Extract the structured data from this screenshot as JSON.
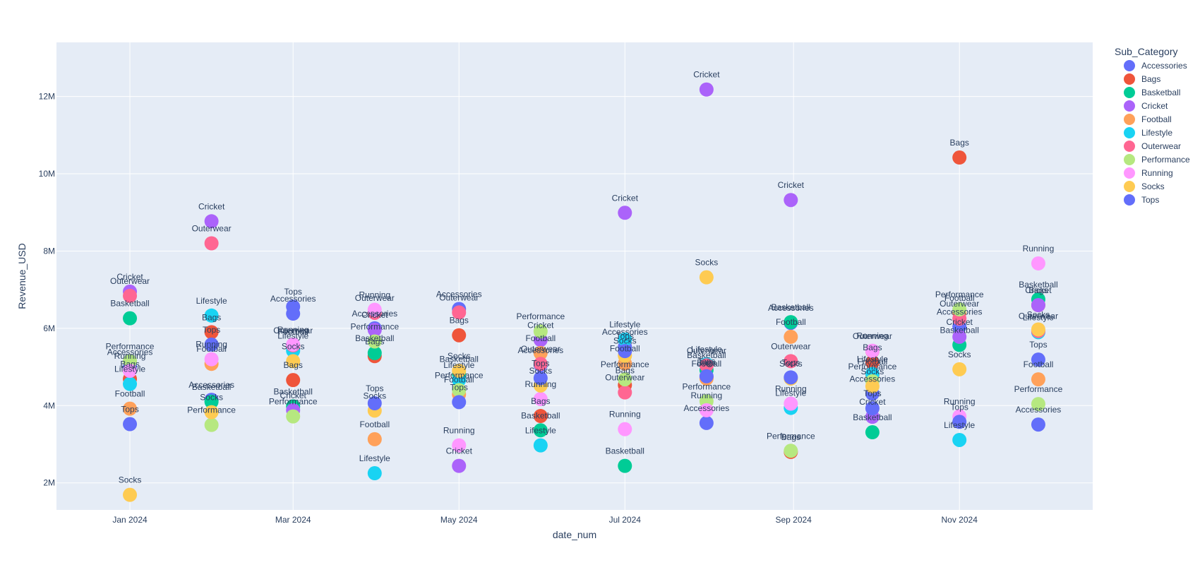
{
  "chart_data": {
    "type": "scatter",
    "title": "",
    "xlabel": "date_num",
    "ylabel": "Revenue_USD",
    "x_ticks": [
      "Jan 2024",
      "Mar 2024",
      "May 2024",
      "Jul 2024",
      "Sep 2024",
      "Nov 2024"
    ],
    "y_ticks": [
      "2M",
      "4M",
      "6M",
      "8M",
      "10M",
      "12M"
    ],
    "ylim": [
      1300000,
      13400000
    ],
    "xlim": [
      "2023-12-05",
      "2024-12-20"
    ],
    "grid": true,
    "legend_title": "Sub_Category",
    "legend_position": "right",
    "show_point_labels": true,
    "series": [
      {
        "name": "Accessories",
        "color": "#636efa",
        "points": [
          {
            "x": "2024-01-01",
            "y": 5000000
          },
          {
            "x": "2024-01-31",
            "y": 4150000
          },
          {
            "x": "2024-03-01",
            "y": 6380000
          },
          {
            "x": "2024-03-31",
            "y": 6000000
          },
          {
            "x": "2024-05-01",
            "y": 6500000
          },
          {
            "x": "2024-05-31",
            "y": 5050000
          },
          {
            "x": "2024-07-01",
            "y": 5520000
          },
          {
            "x": "2024-07-31",
            "y": 3550000
          },
          {
            "x": "2024-08-31",
            "y": 6140000
          },
          {
            "x": "2024-09-30",
            "y": 4310000
          },
          {
            "x": "2024-11-01",
            "y": 6040000
          },
          {
            "x": "2024-11-30",
            "y": 3510000
          }
        ]
      },
      {
        "name": "Bags",
        "color": "#ef553b",
        "points": [
          {
            "x": "2024-01-01",
            "y": 4690000
          },
          {
            "x": "2024-01-31",
            "y": 5900000
          },
          {
            "x": "2024-03-01",
            "y": 4660000
          },
          {
            "x": "2024-03-31",
            "y": 5280000
          },
          {
            "x": "2024-05-01",
            "y": 5820000
          },
          {
            "x": "2024-05-31",
            "y": 3730000
          },
          {
            "x": "2024-07-01",
            "y": 4530000
          },
          {
            "x": "2024-07-31",
            "y": 4730000
          },
          {
            "x": "2024-08-31",
            "y": 2800000
          },
          {
            "x": "2024-09-30",
            "y": 5120000
          },
          {
            "x": "2024-11-01",
            "y": 10420000
          },
          {
            "x": "2024-11-30",
            "y": 6600000
          }
        ]
      },
      {
        "name": "Basketball",
        "color": "#00cc96",
        "points": [
          {
            "x": "2024-01-01",
            "y": 6260000
          },
          {
            "x": "2024-01-31",
            "y": 4100000
          },
          {
            "x": "2024-03-01",
            "y": 3980000
          },
          {
            "x": "2024-03-31",
            "y": 5360000
          },
          {
            "x": "2024-05-01",
            "y": 4820000
          },
          {
            "x": "2024-05-31",
            "y": 3360000
          },
          {
            "x": "2024-07-01",
            "y": 2440000
          },
          {
            "x": "2024-07-31",
            "y": 4920000
          },
          {
            "x": "2024-08-31",
            "y": 6160000
          },
          {
            "x": "2024-09-30",
            "y": 3310000
          },
          {
            "x": "2024-11-01",
            "y": 5570000
          },
          {
            "x": "2024-11-30",
            "y": 6750000
          }
        ]
      },
      {
        "name": "Cricket",
        "color": "#ab63fa",
        "points": [
          {
            "x": "2024-01-01",
            "y": 6950000
          },
          {
            "x": "2024-01-31",
            "y": 8770000
          },
          {
            "x": "2024-03-01",
            "y": 3880000
          },
          {
            "x": "2024-03-31",
            "y": 5960000
          },
          {
            "x": "2024-05-01",
            "y": 2440000
          },
          {
            "x": "2024-05-31",
            "y": 5700000
          },
          {
            "x": "2024-07-01",
            "y": 8990000
          },
          {
            "x": "2024-07-31",
            "y": 12180000
          },
          {
            "x": "2024-08-31",
            "y": 9320000
          },
          {
            "x": "2024-09-30",
            "y": 3710000
          },
          {
            "x": "2024-11-01",
            "y": 5780000
          },
          {
            "x": "2024-11-30",
            "y": 6600000
          }
        ]
      },
      {
        "name": "Football",
        "color": "#ffa15a",
        "points": [
          {
            "x": "2024-01-01",
            "y": 3920000
          },
          {
            "x": "2024-01-31",
            "y": 5080000
          },
          {
            "x": "2024-03-01",
            "y": 5530000
          },
          {
            "x": "2024-03-31",
            "y": 3130000
          },
          {
            "x": "2024-05-01",
            "y": 4290000
          },
          {
            "x": "2024-05-31",
            "y": 5360000
          },
          {
            "x": "2024-07-01",
            "y": 5090000
          },
          {
            "x": "2024-07-31",
            "y": 4700000
          },
          {
            "x": "2024-08-31",
            "y": 5780000
          },
          {
            "x": "2024-09-30",
            "y": 4750000
          },
          {
            "x": "2024-11-01",
            "y": 6400000
          },
          {
            "x": "2024-11-30",
            "y": 4680000
          }
        ]
      },
      {
        "name": "Lifestyle",
        "color": "#19d3f3",
        "points": [
          {
            "x": "2024-01-01",
            "y": 4560000
          },
          {
            "x": "2024-01-31",
            "y": 6330000
          },
          {
            "x": "2024-03-01",
            "y": 5420000
          },
          {
            "x": "2024-03-31",
            "y": 2250000
          },
          {
            "x": "2024-05-01",
            "y": 4660000
          },
          {
            "x": "2024-05-31",
            "y": 2970000
          },
          {
            "x": "2024-07-01",
            "y": 5710000
          },
          {
            "x": "2024-07-31",
            "y": 5070000
          },
          {
            "x": "2024-08-31",
            "y": 3940000
          },
          {
            "x": "2024-09-30",
            "y": 4820000
          },
          {
            "x": "2024-11-01",
            "y": 3110000
          },
          {
            "x": "2024-11-30",
            "y": 5900000
          }
        ]
      },
      {
        "name": "Outerwear",
        "color": "#ff6692",
        "points": [
          {
            "x": "2024-01-01",
            "y": 6840000
          },
          {
            "x": "2024-01-31",
            "y": 8200000
          },
          {
            "x": "2024-03-01",
            "y": 5560000
          },
          {
            "x": "2024-03-31",
            "y": 6400000
          },
          {
            "x": "2024-05-01",
            "y": 6410000
          },
          {
            "x": "2024-05-31",
            "y": 5080000
          },
          {
            "x": "2024-07-01",
            "y": 4340000
          },
          {
            "x": "2024-07-31",
            "y": 5040000
          },
          {
            "x": "2024-08-31",
            "y": 5150000
          },
          {
            "x": "2024-09-30",
            "y": 5410000
          },
          {
            "x": "2024-11-01",
            "y": 6250000
          },
          {
            "x": "2024-11-30",
            "y": 5930000
          }
        ]
      },
      {
        "name": "Performance",
        "color": "#b6e880",
        "points": [
          {
            "x": "2024-01-01",
            "y": 5150000
          },
          {
            "x": "2024-01-31",
            "y": 3500000
          },
          {
            "x": "2024-03-01",
            "y": 3720000
          },
          {
            "x": "2024-03-31",
            "y": 5660000
          },
          {
            "x": "2024-05-01",
            "y": 4400000
          },
          {
            "x": "2024-05-31",
            "y": 5920000
          },
          {
            "x": "2024-07-01",
            "y": 4680000
          },
          {
            "x": "2024-07-31",
            "y": 4110000
          },
          {
            "x": "2024-08-31",
            "y": 2830000
          },
          {
            "x": "2024-09-30",
            "y": 4630000
          },
          {
            "x": "2024-11-01",
            "y": 6490000
          },
          {
            "x": "2024-11-30",
            "y": 4040000
          }
        ]
      },
      {
        "name": "Running",
        "color": "#ff97ff",
        "points": [
          {
            "x": "2024-01-01",
            "y": 4900000
          },
          {
            "x": "2024-01-31",
            "y": 5200000
          },
          {
            "x": "2024-03-01",
            "y": 5580000
          },
          {
            "x": "2024-03-31",
            "y": 6480000
          },
          {
            "x": "2024-05-01",
            "y": 2970000
          },
          {
            "x": "2024-05-31",
            "y": 4170000
          },
          {
            "x": "2024-07-01",
            "y": 3390000
          },
          {
            "x": "2024-07-31",
            "y": 3880000
          },
          {
            "x": "2024-08-31",
            "y": 4050000
          },
          {
            "x": "2024-09-30",
            "y": 5420000
          },
          {
            "x": "2024-11-01",
            "y": 3720000
          },
          {
            "x": "2024-11-30",
            "y": 7680000
          }
        ]
      },
      {
        "name": "Socks",
        "color": "#fecb52",
        "points": [
          {
            "x": "2024-01-01",
            "y": 1690000
          },
          {
            "x": "2024-01-31",
            "y": 3830000
          },
          {
            "x": "2024-03-01",
            "y": 5150000
          },
          {
            "x": "2024-03-31",
            "y": 3870000
          },
          {
            "x": "2024-05-01",
            "y": 4900000
          },
          {
            "x": "2024-05-31",
            "y": 4520000
          },
          {
            "x": "2024-07-01",
            "y": 5290000
          },
          {
            "x": "2024-07-31",
            "y": 7320000
          },
          {
            "x": "2024-08-31",
            "y": 4700000
          },
          {
            "x": "2024-09-30",
            "y": 4500000
          },
          {
            "x": "2024-11-01",
            "y": 4940000
          },
          {
            "x": "2024-11-30",
            "y": 5970000
          }
        ]
      },
      {
        "name": "Tops",
        "color": "#636efa",
        "points": [
          {
            "x": "2024-01-01",
            "y": 3520000
          },
          {
            "x": "2024-01-31",
            "y": 5580000
          },
          {
            "x": "2024-03-01",
            "y": 6560000
          },
          {
            "x": "2024-03-31",
            "y": 4060000
          },
          {
            "x": "2024-05-01",
            "y": 4090000
          },
          {
            "x": "2024-05-31",
            "y": 4710000
          },
          {
            "x": "2024-07-01",
            "y": 5410000
          },
          {
            "x": "2024-07-31",
            "y": 4760000
          },
          {
            "x": "2024-08-31",
            "y": 4730000
          },
          {
            "x": "2024-09-30",
            "y": 3930000
          },
          {
            "x": "2024-11-01",
            "y": 3580000
          },
          {
            "x": "2024-11-30",
            "y": 5190000
          }
        ]
      }
    ]
  }
}
